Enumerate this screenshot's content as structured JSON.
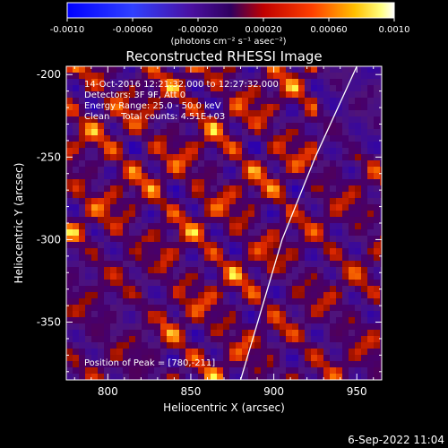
{
  "colorbar": {
    "ticks": [
      "-0.0010",
      "-0.00060",
      "-0.00020",
      "0.00020",
      "0.00060",
      "0.0010"
    ],
    "unit_label": "(photons cm⁻² s⁻¹ asec⁻²)"
  },
  "title": "Reconstructed RHESSI Image",
  "annotations": {
    "line1": "14-Oct-2016 12:21:32.000 to 12:27:32.000",
    "line2": "Detectors: 3F 9F, Att 0",
    "line3": "Energy Range: 25.0 - 50.0 keV",
    "line4": "Clean    Total counts: 4.51E+03",
    "peak": "Position of Peak = [780,-211]"
  },
  "footer_date": "6-Sep-2022 11:04",
  "chart_data": {
    "type": "heatmap",
    "title": "Reconstructed RHESSI Image",
    "xlabel": "Heliocentric X (arcsec)",
    "ylabel": "Heliocentric Y (arcsec)",
    "xlim": [
      775,
      965
    ],
    "ylim": [
      -385,
      -195
    ],
    "x_ticks": [
      800,
      850,
      900,
      950
    ],
    "y_ticks": [
      -350,
      -300,
      -250,
      -200
    ],
    "x_tick_labels": [
      "800",
      "850",
      "900",
      "950"
    ],
    "y_tick_labels": [
      "-350",
      "-300",
      "-250",
      "-200"
    ],
    "colorbar_range": [
      -0.001,
      0.001
    ],
    "peak_position": [
      780,
      -211
    ],
    "limb_curve": [
      [
        880,
        -385
      ],
      [
        905,
        -300
      ],
      [
        925,
        -250
      ],
      [
        950,
        -195
      ]
    ],
    "colors": {
      "negative": "#0000ff",
      "zero": "#3a0080",
      "positive_low": "#c00000",
      "positive_high": "#ffff00",
      "limb": "#ffffff"
    }
  }
}
